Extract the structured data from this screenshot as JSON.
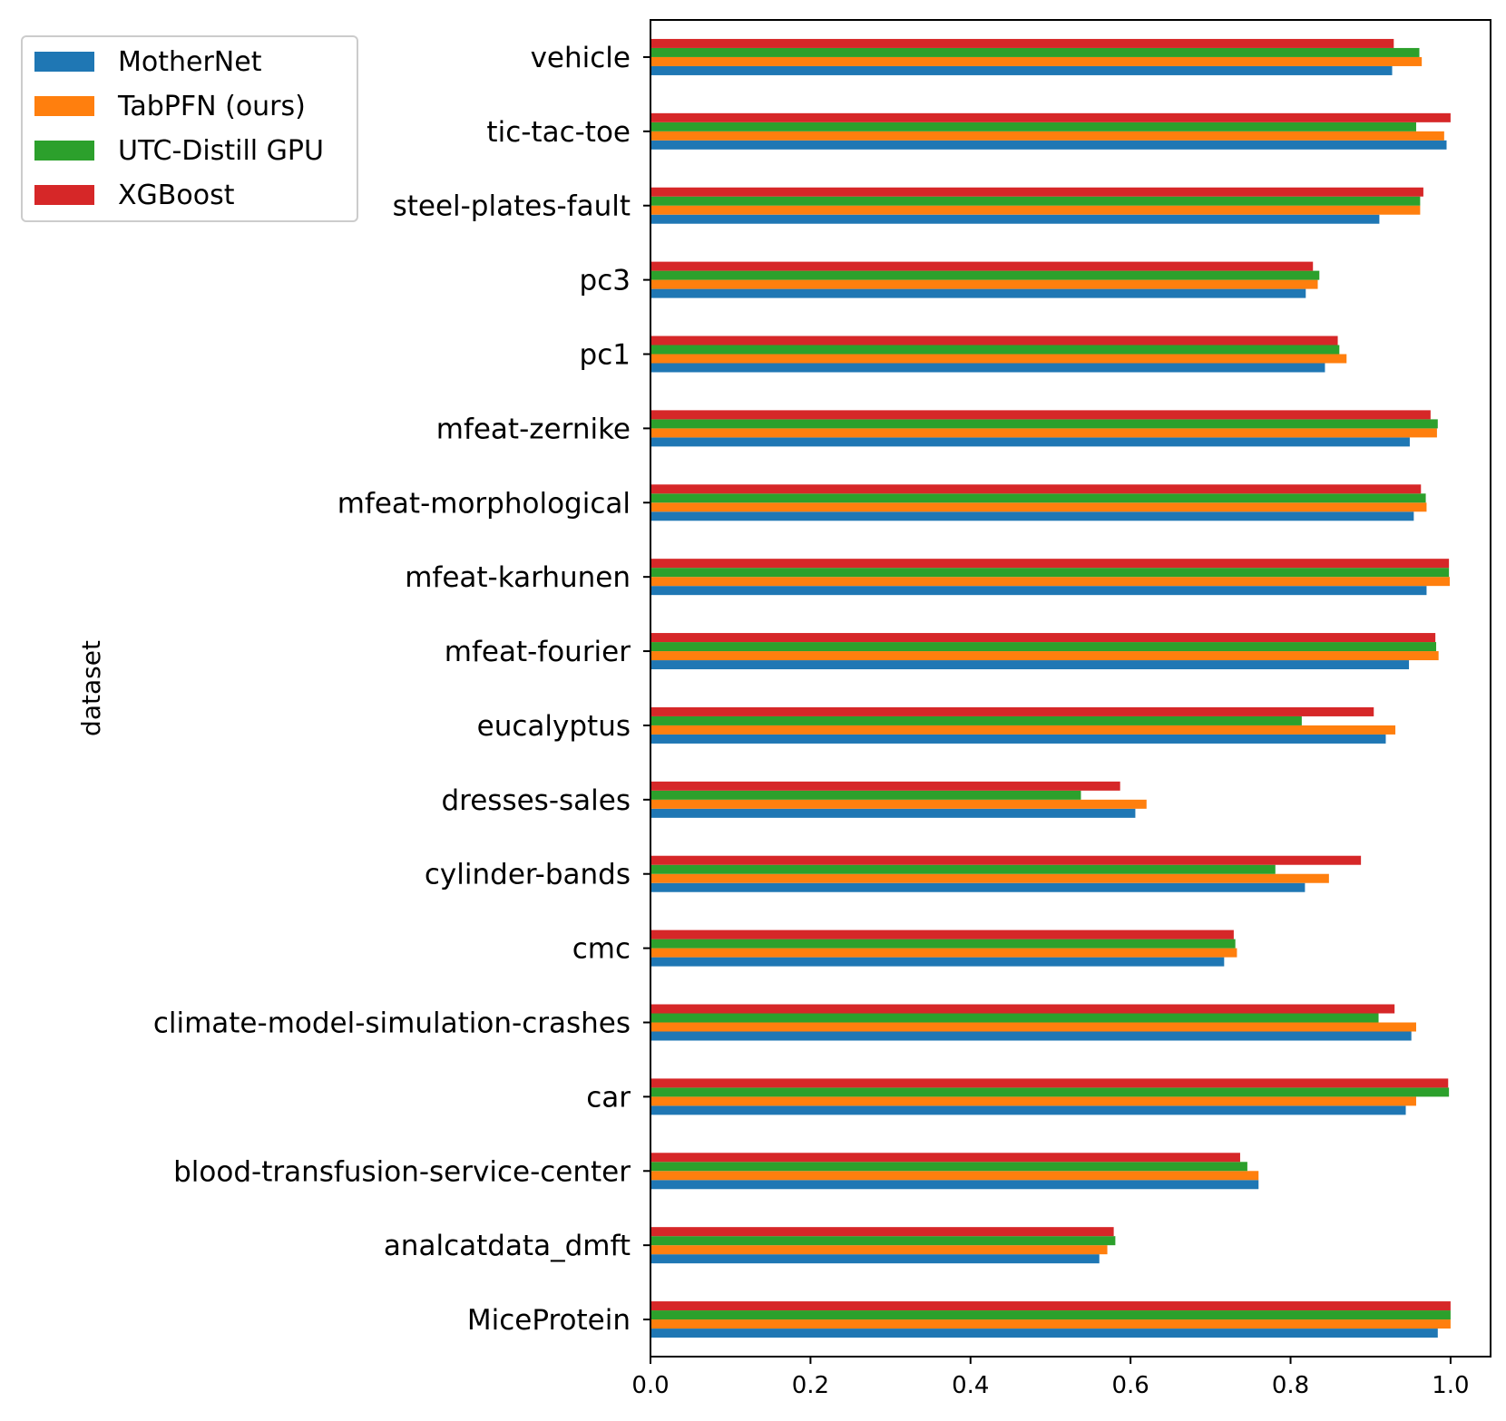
{
  "chart_data": {
    "type": "bar",
    "orientation": "horizontal",
    "title": "",
    "xlabel": "",
    "ylabel": "dataset",
    "xlim": [
      0.0,
      1.05
    ],
    "xticks": [
      "0.0",
      "0.2",
      "0.4",
      "0.6",
      "0.8",
      "1.0"
    ],
    "xtick_values": [
      0.0,
      0.2,
      0.4,
      0.6,
      0.8,
      1.0
    ],
    "grid": false,
    "legend_position": "upper-left",
    "categories": [
      "vehicle",
      "tic-tac-toe",
      "steel-plates-fault",
      "pc3",
      "pc1",
      "mfeat-zernike",
      "mfeat-morphological",
      "mfeat-karhunen",
      "mfeat-fourier",
      "eucalyptus",
      "dresses-sales",
      "cylinder-bands",
      "cmc",
      "climate-model-simulation-crashes",
      "car",
      "blood-transfusion-service-center",
      "analcatdata_dmft",
      "MiceProtein"
    ],
    "series": [
      {
        "name": "MotherNet",
        "color": "#1f77b4",
        "values": [
          0.927,
          0.995,
          0.911,
          0.819,
          0.843,
          0.949,
          0.954,
          0.97,
          0.948,
          0.919,
          0.606,
          0.818,
          0.717,
          0.951,
          0.944,
          0.76,
          0.561,
          0.984
        ]
      },
      {
        "name": "TabPFN (ours)",
        "color": "#ff7f0e",
        "values": [
          0.964,
          0.992,
          0.962,
          0.834,
          0.87,
          0.983,
          0.97,
          0.999,
          0.985,
          0.931,
          0.62,
          0.848,
          0.733,
          0.957,
          0.957,
          0.76,
          0.571,
          1.0
        ]
      },
      {
        "name": "UTC-Distill GPU",
        "color": "#2ca02c",
        "values": [
          0.961,
          0.957,
          0.962,
          0.836,
          0.861,
          0.984,
          0.969,
          0.998,
          0.982,
          0.814,
          0.538,
          0.781,
          0.731,
          0.91,
          0.998,
          0.746,
          0.581,
          1.0
        ]
      },
      {
        "name": "XGBoost",
        "color": "#d62728",
        "values": [
          0.929,
          1.0,
          0.966,
          0.828,
          0.859,
          0.975,
          0.963,
          0.998,
          0.981,
          0.904,
          0.587,
          0.888,
          0.729,
          0.93,
          0.997,
          0.737,
          0.579,
          1.0
        ]
      }
    ]
  }
}
